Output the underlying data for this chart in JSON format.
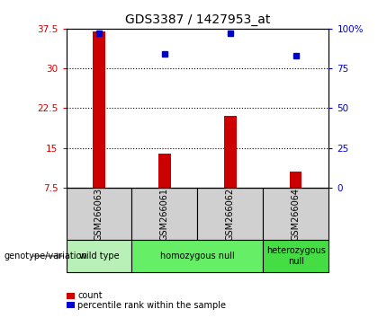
{
  "title": "GDS3387 / 1427953_at",
  "samples": [
    "GSM266063",
    "GSM266061",
    "GSM266062",
    "GSM266064"
  ],
  "count_values": [
    37.0,
    14.0,
    21.0,
    10.5
  ],
  "percentile_values": [
    97,
    84,
    97,
    83
  ],
  "ylim_left": [
    7.5,
    37.5
  ],
  "ylim_right": [
    0,
    100
  ],
  "yticks_left": [
    7.5,
    15.0,
    22.5,
    30.0,
    37.5
  ],
  "ytick_labels_left": [
    "7.5",
    "15",
    "22.5",
    "30",
    "37.5"
  ],
  "yticks_right": [
    0,
    25,
    50,
    75,
    100
  ],
  "ytick_labels_right": [
    "0",
    "25",
    "50",
    "75",
    "100%"
  ],
  "bar_color": "#cc0000",
  "dot_color": "#0000cc",
  "bar_bottom": 7.5,
  "groups": [
    {
      "label": "wild type",
      "col_indices": [
        0
      ],
      "color": "#b8f0b8"
    },
    {
      "label": "homozygous null",
      "col_indices": [
        1,
        2
      ],
      "color": "#66ee66"
    },
    {
      "label": "heterozygous\nnull",
      "col_indices": [
        3
      ],
      "color": "#44dd44"
    }
  ],
  "group_label": "genotype/variation",
  "legend_items": [
    {
      "color": "#cc0000",
      "label": "count"
    },
    {
      "color": "#0000cc",
      "label": "percentile rank within the sample"
    }
  ],
  "sample_box_color": "#d0d0d0",
  "title_fontsize": 10,
  "tick_fontsize": 7.5,
  "sample_fontsize": 7,
  "group_fontsize": 7,
  "legend_fontsize": 7
}
